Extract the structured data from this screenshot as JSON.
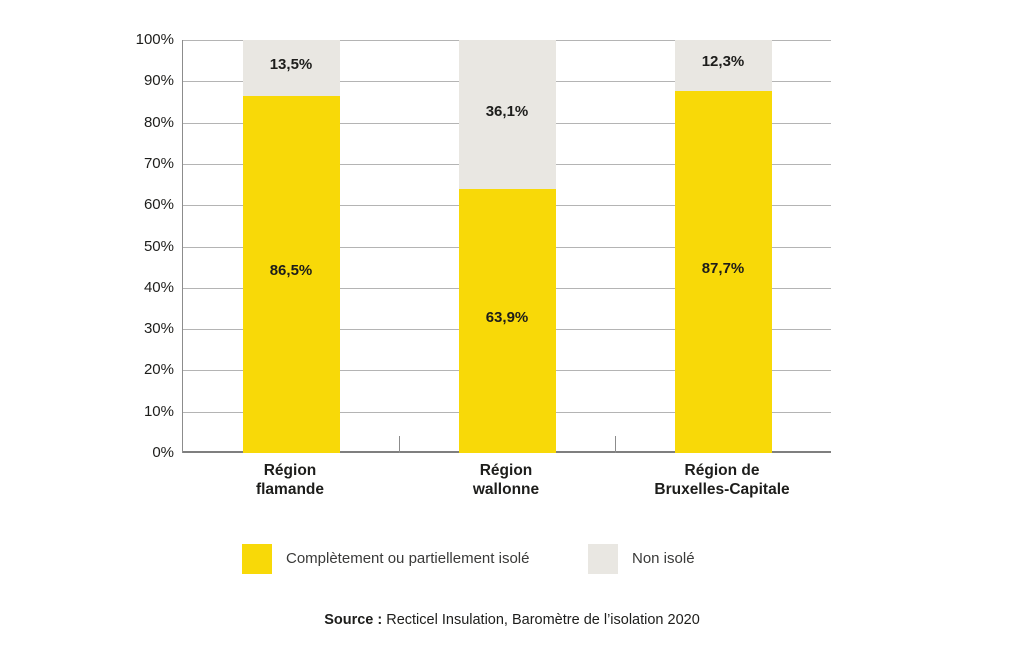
{
  "chart_data": {
    "type": "bar",
    "stacked": true,
    "orientation": "vertical",
    "categories": [
      "Région\nflamande",
      "Région\nwallonne",
      "Région de\nBruxelles-Capitale"
    ],
    "series": [
      {
        "name": "Complètement ou partiellement isolé",
        "color": "#F8D908",
        "values": [
          86.5,
          63.9,
          87.7
        ],
        "labels": [
          "86,5%",
          "63,9%",
          "87,7%"
        ]
      },
      {
        "name": "Non isolé",
        "color": "#E9E7E2",
        "values": [
          13.5,
          36.1,
          12.3
        ],
        "labels": [
          "13,5%",
          "36,1%",
          "12,3%"
        ]
      }
    ],
    "y_axis": {
      "min": 0,
      "max": 100,
      "step": 10,
      "tick_labels": [
        "0%",
        "10%",
        "20%",
        "30%",
        "40%",
        "50%",
        "60%",
        "70%",
        "80%",
        "90%",
        "100%"
      ],
      "grid": true
    },
    "x_axis": {
      "boundary_ticks": true
    },
    "legend": {
      "position": "bottom",
      "items": [
        {
          "label": "Complètement ou partiellement isolé",
          "color": "#F8D908"
        },
        {
          "label": "Non isolé",
          "color": "#E9E7E2"
        }
      ]
    },
    "source": {
      "prefix": "Source :",
      "text": " Recticel Insulation, Baromètre de l’isolation 2020"
    }
  },
  "colors": {
    "grid": "#B4B4B4",
    "axis": "#8C8C8C",
    "text": "#1D1D1B",
    "legend_text": "#3A3A39",
    "background": "#FFFFFF"
  }
}
